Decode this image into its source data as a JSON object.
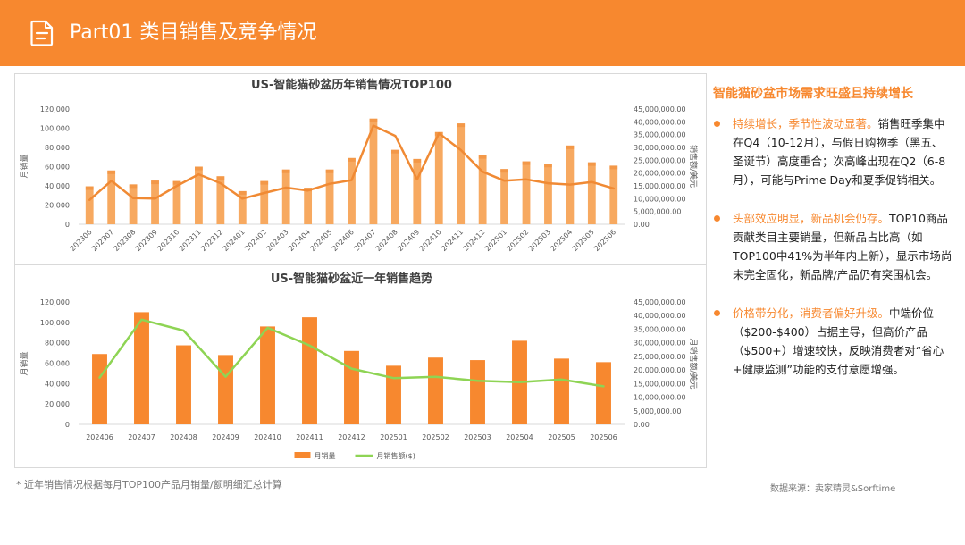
{
  "header": {
    "title": "Part01 类目销售及竞争情况",
    "icon": "document-icon"
  },
  "chart_data": [
    {
      "type": "bar+line",
      "title": "US-智能猫砂盆历年销售情况TOP100",
      "ylabel_left": "月销量",
      "ylabel_right": "销售额/美元",
      "categories": [
        "202306",
        "202307",
        "202308",
        "202309",
        "202310",
        "202311",
        "202312",
        "202401",
        "202402",
        "202403",
        "202404",
        "202405",
        "202406",
        "202407",
        "202408",
        "202409",
        "202410",
        "202411",
        "202412",
        "202501",
        "202502",
        "202503",
        "202504",
        "202505",
        "202506"
      ],
      "series": [
        {
          "kind": "bar",
          "axis": "left",
          "values": [
            39500,
            56000,
            41500,
            45500,
            45000,
            60000,
            50000,
            34500,
            45000,
            57000,
            38000,
            57000,
            69000,
            110000,
            77500,
            68000,
            96000,
            105000,
            72000,
            57500,
            65500,
            63000,
            82000,
            64500,
            61000
          ]
        },
        {
          "kind": "line",
          "axis": "right",
          "values": [
            9500000,
            17000000,
            10200000,
            10000000,
            15000000,
            19500000,
            16000000,
            10000000,
            12200000,
            14300000,
            13200000,
            15800000,
            17200000,
            38500000,
            34500000,
            17500000,
            35500000,
            29000000,
            20500000,
            17000000,
            17500000,
            16000000,
            15500000,
            16500000,
            14000000
          ]
        }
      ],
      "ylim_left": [
        0,
        120000
      ],
      "ylim_right": [
        0,
        45000000
      ],
      "yticks_left": [
        "0",
        "20,000",
        "40,000",
        "60,000",
        "80,000",
        "100,000",
        "120,000"
      ],
      "yticks_right": [
        "0.00",
        "5,000,000.00",
        "10,000,000.00",
        "15,000,000.00",
        "20,000,000.00",
        "25,000,000.00",
        "30,000,000.00",
        "35,000,000.00",
        "40,000,000.00",
        "45,000,000.00"
      ],
      "colors": {
        "bar": "#f7a960",
        "line": "#f08a34"
      }
    },
    {
      "type": "bar+line",
      "title": "US-智能猫砂盆近一年销售趋势",
      "ylabel_left": "月销量",
      "ylabel_right": "月销售额/美元",
      "categories": [
        "202406",
        "202407",
        "202408",
        "202409",
        "202410",
        "202411",
        "202412",
        "202501",
        "202502",
        "202503",
        "202504",
        "202505",
        "202506"
      ],
      "series": [
        {
          "name": "月销量",
          "kind": "bar",
          "axis": "left",
          "values": [
            69000,
            110000,
            77500,
            68000,
            96000,
            105000,
            72000,
            57500,
            65500,
            63000,
            82000,
            64500,
            61000
          ]
        },
        {
          "name": "月销售额($)",
          "kind": "line",
          "axis": "right",
          "values": [
            17200000,
            38500000,
            34500000,
            17500000,
            35500000,
            29000000,
            20500000,
            17000000,
            17500000,
            16000000,
            15500000,
            16500000,
            14000000
          ]
        }
      ],
      "ylim_left": [
        0,
        120000
      ],
      "ylim_right": [
        0,
        45000000
      ],
      "yticks_left": [
        "0",
        "20,000",
        "40,000",
        "60,000",
        "80,000",
        "100,000",
        "120,000"
      ],
      "yticks_right": [
        "0.00",
        "5,000,000.00",
        "10,000,000.00",
        "15,000,000.00",
        "20,000,000.00",
        "25,000,000.00",
        "30,000,000.00",
        "35,000,000.00",
        "40,000,000.00",
        "45,000,000.00"
      ],
      "legend_position": "bottom",
      "colors": {
        "bar": "#f7882f",
        "line": "#8ed454"
      }
    }
  ],
  "footnote": "* 近年销售情况根据每月TOP100产品月销量/额明细汇总计算",
  "source": "数据来源：卖家精灵&Sorftime",
  "panel": {
    "title": "智能猫砂盆市场需求旺盛且持续增长",
    "bullets": [
      {
        "highlight": "持续增长，季节性波动显著。",
        "text": "销售旺季集中在Q4（10-12月），与假日购物季（黑五、圣诞节）高度重合；次高峰出现在Q2（6-8月），可能与Prime Day和夏季促销相关。"
      },
      {
        "highlight": "头部效应明显，新品机会仍存。",
        "text": "TOP10商品贡献类目主要销量，但新品占比高（如TOP100中41%为半年内上新），显示市场尚未完全固化，新品牌/产品仍有突围机会。"
      },
      {
        "highlight": "价格带分化，消费者偏好升级。",
        "text": "中端价位（$200-$400）占据主导，但高价产品（$500+）增速较快，反映消费者对“省心+健康监测”功能的支付意愿增强。"
      }
    ]
  }
}
